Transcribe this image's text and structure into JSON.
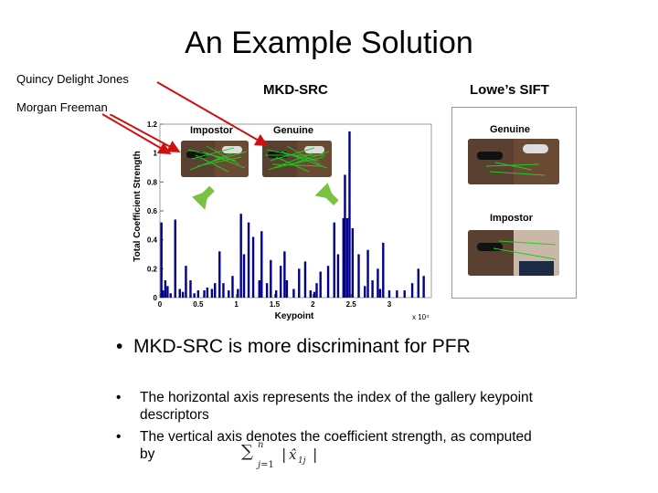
{
  "slide": {
    "title": "An Example Solution"
  },
  "names": {
    "top": "Quincy Delight Jones",
    "bottom": "Morgan Freeman"
  },
  "panels": {
    "left_header": "MKD-SRC",
    "right_header": "Lowe’s SIFT",
    "mkd_labels": {
      "impostor": "Impostor",
      "genuine": "Genuine"
    },
    "sift_labels": {
      "genuine": "Genuine",
      "impostor": "Impostor"
    }
  },
  "bullets": {
    "main": "MKD-SRC is more discriminant for PFR",
    "sub": [
      "The horizontal axis represents the index of the gallery keypoint descriptors",
      "The vertical axis denotes the coefficient strength, as computed by"
    ],
    "formula": "∑_{j=1}^{n} |x̂_{1j}|"
  },
  "colors": {
    "bars": "#00008b",
    "arrow_red": "#d01010",
    "arrow_green": "#7cc242",
    "match_lines": "#22cc22"
  },
  "chart_data": {
    "type": "bar",
    "title": "",
    "xlabel": "Keypoint",
    "ylabel": "Total Coefficient Strength",
    "x_multiplier": "x 10⁴",
    "xlim": [
      0,
      3.55
    ],
    "ylim": [
      0,
      1.2
    ],
    "xticks": [
      0,
      0.5,
      1,
      1.5,
      2,
      2.5,
      3
    ],
    "yticks": [
      0,
      0.2,
      0.4,
      0.6,
      0.8,
      1,
      1.2
    ],
    "series": [
      {
        "x": [
          0.02,
          0.04,
          0.07,
          0.1,
          0.14,
          0.2,
          0.26,
          0.3,
          0.34,
          0.4,
          0.45,
          0.5,
          0.58,
          0.62,
          0.68,
          0.72,
          0.78,
          0.83,
          0.9,
          0.95,
          1.02,
          1.06,
          1.1,
          1.16,
          1.22,
          1.3,
          1.33,
          1.4,
          1.45,
          1.52,
          1.58,
          1.63,
          1.66,
          1.75,
          1.82,
          1.9,
          1.97,
          2.02,
          2.05,
          2.1,
          2.2,
          2.28,
          2.33,
          2.4,
          2.42,
          2.45,
          2.48,
          2.52,
          2.6,
          2.68,
          2.72,
          2.78,
          2.85,
          2.88,
          2.92,
          3.0,
          3.1,
          3.2,
          3.3,
          3.38,
          3.45
        ],
        "values": [
          0.52,
          0.05,
          0.12,
          0.08,
          0.03,
          0.54,
          0.06,
          0.04,
          0.22,
          0.12,
          0.03,
          0.05,
          0.05,
          0.07,
          0.06,
          0.1,
          0.32,
          0.1,
          0.05,
          0.15,
          0.06,
          0.58,
          0.3,
          0.52,
          0.42,
          0.12,
          0.46,
          0.1,
          0.26,
          0.05,
          0.22,
          0.32,
          0.12,
          0.06,
          0.2,
          0.25,
          0.05,
          0.04,
          0.1,
          0.18,
          0.22,
          0.52,
          0.3,
          0.55,
          0.85,
          0.55,
          1.15,
          0.48,
          0.3,
          0.08,
          0.33,
          0.12,
          0.2,
          0.06,
          0.38,
          0.05,
          0.05,
          0.05,
          0.1,
          0.2,
          0.15
        ]
      }
    ]
  }
}
